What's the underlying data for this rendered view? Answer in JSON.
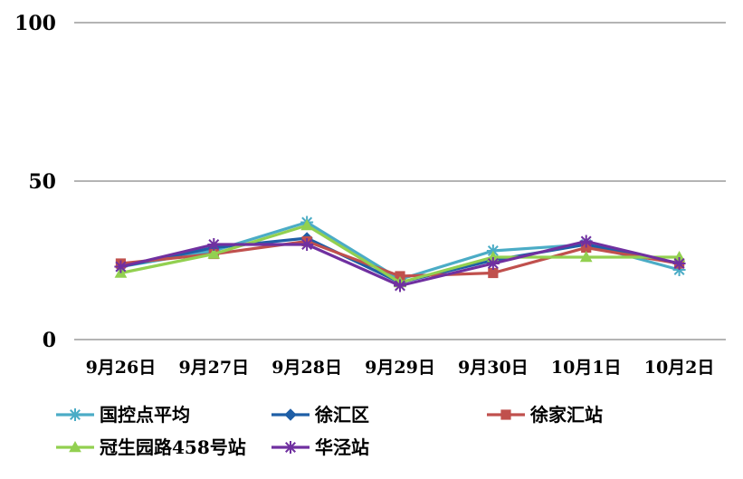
{
  "chart_data": {
    "type": "line",
    "title": "",
    "xlabel": "",
    "ylabel": "",
    "categories": [
      "9月26日",
      "9月27日",
      "9月28日",
      "9月29日",
      "9月30日",
      "10月1日",
      "10月2日"
    ],
    "ylim": [
      0,
      100
    ],
    "yticks": [
      "0",
      "50",
      "100"
    ],
    "grid": true,
    "legend_position": "bottom",
    "series": [
      {
        "name": "国控点平均",
        "values": [
          23,
          28,
          37,
          19,
          28,
          30,
          22
        ],
        "color": "#4bacc6",
        "marker": "star"
      },
      {
        "name": "徐汇区",
        "values": [
          23,
          29,
          32,
          18,
          25,
          30,
          24
        ],
        "color": "#1f5fa6",
        "marker": "diamond"
      },
      {
        "name": "徐家汇站",
        "values": [
          24,
          27,
          31,
          20,
          21,
          29,
          24
        ],
        "color": "#c0504d",
        "marker": "square"
      },
      {
        "name": "冠生园路458号站",
        "values": [
          21,
          27,
          36,
          18,
          26,
          26,
          26
        ],
        "color": "#92d050",
        "marker": "triangle"
      },
      {
        "name": "华泾站",
        "values": [
          23,
          30,
          30,
          17,
          24,
          31,
          24
        ],
        "color": "#7030a0",
        "marker": "asterisk"
      }
    ]
  }
}
